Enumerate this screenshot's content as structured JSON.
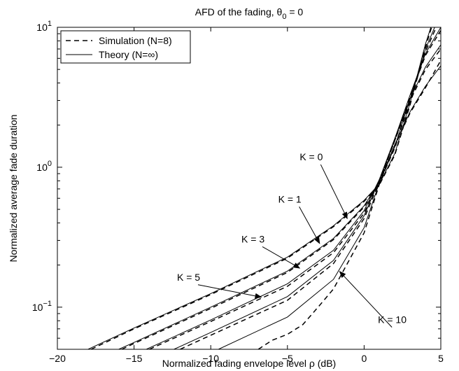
{
  "chart_data": {
    "type": "line",
    "title": "AFD of the fading, θ₀ = 0",
    "title_parts": {
      "prefix": "AFD of the fading,  θ",
      "sub": "0",
      "suffix": " = 0"
    },
    "xlabel": "Normalized fading envelope level ρ (dB)",
    "ylabel": "Normalized average fade duration",
    "xlim": [
      -20,
      5
    ],
    "ylim": [
      0.05,
      10
    ],
    "yscale": "log",
    "grid": false,
    "legend_position": "top-left",
    "x_ticks": [
      -20,
      -15,
      -10,
      -5,
      0,
      5
    ],
    "x_tick_labels": [
      "−20",
      "−15",
      "−10",
      "−5",
      "0",
      "5"
    ],
    "y_ticks": [
      {
        "value": 0.1,
        "base": "10",
        "exp": "−1"
      },
      {
        "value": 1,
        "base": "10",
        "exp": "0"
      },
      {
        "value": 10,
        "base": "10",
        "exp": "1"
      }
    ],
    "legend": [
      {
        "label": "Simulation (N=8)",
        "style": "dashed"
      },
      {
        "label": "Theory  (N=∞)",
        "style": "solid"
      }
    ],
    "series": [
      {
        "K": 0,
        "theory": [
          [
            -18,
            0.05
          ],
          [
            -15,
            0.071
          ],
          [
            -10,
            0.125
          ],
          [
            -5,
            0.228
          ],
          [
            -2,
            0.382
          ],
          [
            0,
            0.58
          ],
          [
            1,
            0.76
          ],
          [
            2,
            1.25
          ],
          [
            3,
            2.9
          ],
          [
            4,
            7.6
          ],
          [
            4.35,
            10
          ]
        ],
        "simulation": [
          [
            -17.8,
            0.05
          ],
          [
            -15,
            0.07
          ],
          [
            -10,
            0.123
          ],
          [
            -5,
            0.224
          ],
          [
            -2,
            0.376
          ],
          [
            0,
            0.57
          ],
          [
            1,
            0.75
          ],
          [
            2,
            1.22
          ],
          [
            3,
            2.8
          ],
          [
            4,
            7.2
          ],
          [
            4.4,
            10
          ]
        ]
      },
      {
        "K": 1,
        "theory": [
          [
            -16,
            0.05
          ],
          [
            -15,
            0.056
          ],
          [
            -10,
            0.1
          ],
          [
            -5,
            0.181
          ],
          [
            -2,
            0.31
          ],
          [
            0,
            0.53
          ],
          [
            1,
            0.79
          ],
          [
            2,
            1.4
          ],
          [
            3,
            3.1
          ],
          [
            4,
            7.0
          ],
          [
            4.6,
            10
          ]
        ],
        "simulation": [
          [
            -15.8,
            0.05
          ],
          [
            -15,
            0.055
          ],
          [
            -10,
            0.098
          ],
          [
            -5,
            0.177
          ],
          [
            -2,
            0.304
          ],
          [
            0,
            0.52
          ],
          [
            1,
            0.78
          ],
          [
            2,
            1.37
          ],
          [
            3,
            3.0
          ],
          [
            4,
            6.7
          ],
          [
            4.7,
            10
          ]
        ]
      },
      {
        "K": 3,
        "theory": [
          [
            -14.2,
            0.05
          ],
          [
            -10,
            0.081
          ],
          [
            -5,
            0.147
          ],
          [
            -2,
            0.255
          ],
          [
            0,
            0.49
          ],
          [
            1,
            0.82
          ],
          [
            2,
            1.6
          ],
          [
            3,
            3.3
          ],
          [
            4,
            6.5
          ],
          [
            5,
            10
          ]
        ],
        "simulation": [
          [
            -14,
            0.05
          ],
          [
            -10,
            0.079
          ],
          [
            -5,
            0.141
          ],
          [
            -2,
            0.245
          ],
          [
            0,
            0.47
          ],
          [
            1,
            0.8
          ],
          [
            2,
            1.55
          ],
          [
            3,
            3.2
          ],
          [
            4,
            6.3
          ],
          [
            5,
            9.5
          ]
        ]
      },
      {
        "K": 5,
        "theory": [
          [
            -12.4,
            0.05
          ],
          [
            -10,
            0.066
          ],
          [
            -5,
            0.119
          ],
          [
            -2,
            0.216
          ],
          [
            0,
            0.45
          ],
          [
            1,
            0.82
          ],
          [
            2,
            1.6
          ],
          [
            3,
            3.1
          ],
          [
            4,
            5.2
          ],
          [
            5,
            7.5
          ]
        ],
        "simulation": [
          [
            -12,
            0.05
          ],
          [
            -10,
            0.063
          ],
          [
            -5,
            0.112
          ],
          [
            -2,
            0.205
          ],
          [
            0,
            0.43
          ],
          [
            1,
            0.79
          ],
          [
            2,
            1.55
          ],
          [
            3,
            3.0
          ],
          [
            4,
            5.0
          ],
          [
            5,
            7.0
          ]
        ]
      },
      {
        "K": 10,
        "theory": [
          [
            -9.5,
            0.05
          ],
          [
            -5,
            0.085
          ],
          [
            -2,
            0.158
          ],
          [
            0,
            0.37
          ],
          [
            1,
            0.78
          ],
          [
            2,
            1.45
          ],
          [
            3,
            2.5
          ],
          [
            4,
            3.8
          ],
          [
            5,
            5.3
          ]
        ],
        "simulation": [
          [
            -6.9,
            0.05
          ],
          [
            -6,
            0.058
          ],
          [
            -5,
            0.064
          ],
          [
            -4,
            0.075
          ],
          [
            -3,
            0.1
          ],
          [
            -2,
            0.135
          ],
          [
            0,
            0.34
          ],
          [
            1,
            0.76
          ],
          [
            2,
            1.43
          ],
          [
            3,
            2.45
          ],
          [
            4,
            3.7
          ],
          [
            5,
            5.8
          ]
        ]
      }
    ],
    "annotations": [
      {
        "text": "K = 0",
        "text_x": -4.2,
        "text_y": 1.12,
        "arrow_to": [
          -1.1,
          0.43
        ]
      },
      {
        "text": "K = 1",
        "text_x": -5.6,
        "text_y": 0.56,
        "arrow_to": [
          -2.9,
          0.285
        ]
      },
      {
        "text": "K = 3",
        "text_x": -8.0,
        "text_y": 0.29,
        "arrow_to": [
          -4.2,
          0.19
        ]
      },
      {
        "text": "K = 5",
        "text_x": -12.2,
        "text_y": 0.155,
        "arrow_to": [
          -6.7,
          0.118
        ]
      },
      {
        "text": "K = 10",
        "text_x": 0.9,
        "text_y": 0.077,
        "arrow_to": [
          -1.6,
          0.18
        ]
      }
    ]
  }
}
